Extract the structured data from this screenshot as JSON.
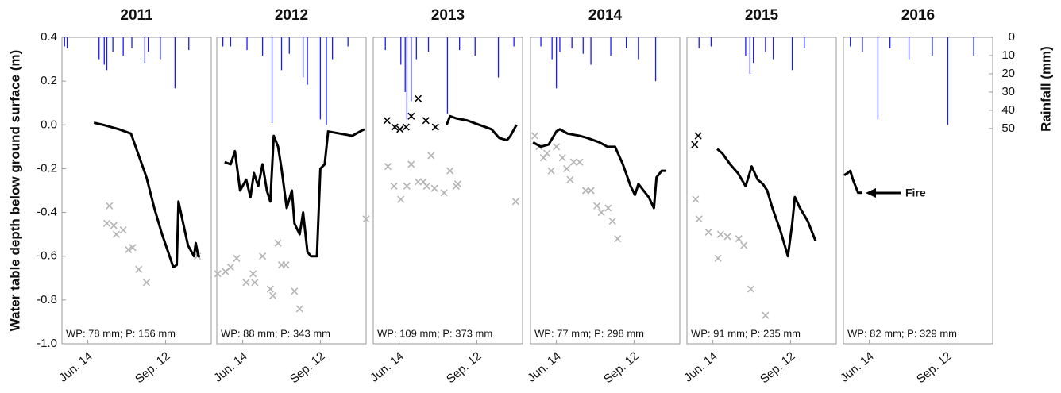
{
  "chart_data": [
    {
      "type": "line",
      "title": "2011",
      "note": "WP: 78 mm; P: 156 mm",
      "ylabel": "Water table depth below ground surface (m)",
      "xlim": [
        135,
        308
      ],
      "ylim": [
        -1.0,
        0.4
      ],
      "y2lim": [
        0,
        168
      ],
      "xticks": [
        {
          "value": 165,
          "label": "Jun. 14"
        },
        {
          "value": 255,
          "label": "Sep. 12"
        }
      ],
      "yticks": [
        0.4,
        0.2,
        {
          "value": 0,
          "label": "0.0"
        },
        -0.2,
        -0.4,
        -0.6,
        -0.8,
        {
          "value": -1.0,
          "label": "-1.0"
        }
      ],
      "series": [
        {
          "type": "bar",
          "axis": "y2",
          "color": "#1a1aff",
          "x": [
            138,
            141,
            178,
            184,
            187,
            194,
            206,
            216,
            231,
            235,
            249,
            266,
            282
          ],
          "values": [
            5,
            6,
            12,
            15,
            18,
            8,
            10,
            6,
            14,
            8,
            12,
            28,
            7
          ]
        },
        {
          "type": "scatter",
          "color": "#b4b4b4",
          "x": [
            190,
            187,
            195,
            198,
            206,
            212,
            217,
            224,
            233,
            292
          ],
          "values": [
            -0.37,
            -0.45,
            -0.46,
            -0.5,
            -0.48,
            -0.57,
            -0.56,
            -0.66,
            -0.72,
            -0.6
          ]
        },
        {
          "type": "line",
          "color": "#000000",
          "x": [
            172,
            183,
            201,
            215,
            224,
            233,
            242,
            251,
            258,
            264,
            268,
            270,
            281,
            288,
            290,
            293,
            295
          ],
          "values": [
            0.01,
            0.0,
            -0.02,
            -0.04,
            -0.14,
            -0.24,
            -0.38,
            -0.5,
            -0.58,
            -0.65,
            -0.64,
            -0.35,
            -0.55,
            -0.6,
            -0.54,
            -0.6,
            -0.6
          ]
        }
      ]
    },
    {
      "type": "line",
      "title": "2012",
      "note": "WP: 88 mm; P: 343 mm",
      "xlim": [
        135,
        308
      ],
      "ylim": [
        -1.0,
        0.4
      ],
      "y2lim": [
        0,
        168
      ],
      "xticks": [
        {
          "value": 165,
          "label": "Jun. 14"
        },
        {
          "value": 255,
          "label": "Sep. 12"
        }
      ],
      "series": [
        {
          "type": "bar",
          "axis": "y2",
          "color": "#1a1aff",
          "x": [
            142,
            151,
            170,
            188,
            199,
            210,
            219,
            235,
            240,
            255,
            262,
            269,
            287
          ],
          "values": [
            5,
            5,
            7,
            10,
            47,
            18,
            9,
            22,
            26,
            45,
            48,
            12,
            5
          ]
        },
        {
          "type": "scatter",
          "color": "#b4b4b4",
          "x": [
            136,
            145,
            151,
            158,
            169,
            177,
            179,
            188,
            197,
            200,
            206,
            210,
            215,
            225,
            231,
            308
          ],
          "values": [
            -0.68,
            -0.67,
            -0.65,
            -0.61,
            -0.72,
            -0.68,
            -0.72,
            -0.6,
            -0.75,
            -0.78,
            -0.54,
            -0.64,
            -0.64,
            -0.76,
            -0.84,
            -0.43
          ]
        },
        {
          "type": "line",
          "color": "#000000",
          "x": [
            144,
            151,
            156,
            162,
            169,
            174,
            178,
            183,
            188,
            193,
            197,
            201,
            206,
            210,
            216,
            222,
            225,
            231,
            235,
            240,
            244,
            251,
            255,
            260,
            264,
            278,
            292,
            301,
            306
          ],
          "values": [
            -0.17,
            -0.18,
            -0.12,
            -0.3,
            -0.25,
            -0.33,
            -0.22,
            -0.28,
            -0.18,
            -0.3,
            -0.35,
            -0.05,
            -0.1,
            -0.2,
            -0.38,
            -0.3,
            -0.45,
            -0.5,
            -0.4,
            -0.58,
            -0.6,
            -0.6,
            -0.2,
            -0.18,
            -0.03,
            -0.04,
            -0.05,
            -0.03,
            -0.02
          ]
        }
      ]
    },
    {
      "type": "line",
      "title": "2013",
      "note": "WP: 109 mm; P: 373 mm",
      "xlim": [
        135,
        308
      ],
      "ylim": [
        -1.0,
        0.4
      ],
      "y2lim": [
        0,
        168
      ],
      "xticks": [
        {
          "value": 165,
          "label": "Jun. 14"
        },
        {
          "value": 255,
          "label": "Sep. 12"
        }
      ],
      "series": [
        {
          "type": "bar",
          "axis": "y2",
          "color": "#1a1aff",
          "x": [
            149,
            167,
            172,
            174,
            179,
            185,
            199,
            221,
            235,
            253,
            280,
            298
          ],
          "values": [
            7,
            15,
            30,
            45,
            35,
            12,
            8,
            42,
            7,
            10,
            22,
            5
          ]
        },
        {
          "type": "scatter",
          "color": "#b4b4b4",
          "x": [
            152,
            159,
            167,
            174,
            179,
            187,
            193,
            197,
            202,
            206,
            217,
            224,
            231,
            233,
            300
          ],
          "values": [
            -0.19,
            -0.28,
            -0.34,
            -0.28,
            -0.18,
            -0.26,
            -0.26,
            -0.28,
            -0.14,
            -0.29,
            -0.31,
            -0.21,
            -0.28,
            -0.27,
            -0.35
          ]
        },
        {
          "type": "scatter",
          "color": "#000000",
          "x": [
            151,
            160,
            166,
            173,
            179,
            187,
            196,
            207
          ],
          "values": [
            0.02,
            -0.01,
            -0.02,
            -0.01,
            0.04,
            0.12,
            0.02,
            -0.01
          ]
        },
        {
          "type": "line",
          "color": "#000000",
          "x": [
            220,
            224,
            231,
            244,
            258,
            272,
            281,
            290,
            294,
            301
          ],
          "values": [
            0.0,
            0.04,
            0.03,
            0.02,
            0.0,
            -0.02,
            -0.06,
            -0.07,
            -0.05,
            0.0
          ]
        }
      ]
    },
    {
      "type": "line",
      "title": "2014",
      "note": "WP: 77 mm; P: 298 mm",
      "xlim": [
        135,
        308
      ],
      "ylim": [
        -1.0,
        0.4
      ],
      "y2lim": [
        0,
        168
      ],
      "xticks": [
        {
          "value": 165,
          "label": "Jun. 14"
        },
        {
          "value": 255,
          "label": "Sep. 12"
        }
      ],
      "series": [
        {
          "type": "bar",
          "axis": "y2",
          "color": "#1a1aff",
          "x": [
            147,
            160,
            165,
            169,
            183,
            196,
            205,
            228,
            246,
            260,
            280
          ],
          "values": [
            5,
            12,
            28,
            8,
            6,
            9,
            15,
            10,
            6,
            12,
            24
          ]
        },
        {
          "type": "scatter",
          "color": "#b4b4b4",
          "x": [
            140,
            145,
            150,
            154,
            159,
            165,
            172,
            177,
            181,
            185,
            192,
            199,
            205,
            212,
            217,
            225,
            230,
            236
          ],
          "values": [
            -0.05,
            -0.1,
            -0.15,
            -0.13,
            -0.21,
            -0.1,
            -0.15,
            -0.2,
            -0.25,
            -0.17,
            -0.17,
            -0.3,
            -0.3,
            -0.37,
            -0.4,
            -0.38,
            -0.44,
            -0.52
          ]
        },
        {
          "type": "line",
          "color": "#000000",
          "x": [
            138,
            147,
            156,
            165,
            169,
            178,
            192,
            201,
            215,
            224,
            233,
            242,
            251,
            256,
            260,
            266,
            272,
            278,
            281,
            287,
            292
          ],
          "values": [
            -0.08,
            -0.1,
            -0.09,
            -0.03,
            -0.02,
            -0.04,
            -0.05,
            -0.06,
            -0.08,
            -0.1,
            -0.1,
            -0.18,
            -0.28,
            -0.32,
            -0.27,
            -0.3,
            -0.33,
            -0.38,
            -0.24,
            -0.21,
            -0.21
          ]
        }
      ]
    },
    {
      "type": "line",
      "title": "2015",
      "note": "WP: 91 mm; P: 235 mm",
      "xlim": [
        135,
        308
      ],
      "ylim": [
        -1.0,
        0.4
      ],
      "y2lim": [
        0,
        168
      ],
      "xticks": [
        {
          "value": 165,
          "label": "Jun. 14"
        },
        {
          "value": 255,
          "label": "Sep. 12"
        }
      ],
      "series": [
        {
          "type": "bar",
          "axis": "y2",
          "color": "#1a1aff",
          "x": [
            149,
            163,
            203,
            208,
            212,
            226,
            235,
            257,
            271
          ],
          "values": [
            6,
            5,
            10,
            20,
            14,
            8,
            12,
            18,
            6
          ]
        },
        {
          "type": "scatter",
          "color": "#b4b4b4",
          "x": [
            145,
            149,
            160,
            171,
            174,
            182,
            195,
            201,
            209,
            226
          ],
          "values": [
            -0.34,
            -0.43,
            -0.49,
            -0.61,
            -0.5,
            -0.51,
            -0.52,
            -0.55,
            -0.75,
            -0.87
          ]
        },
        {
          "type": "scatter",
          "color": "#000000",
          "x": [
            144,
            148
          ],
          "values": [
            -0.09,
            -0.05
          ]
        },
        {
          "type": "line",
          "color": "#000000",
          "x": [
            170,
            176,
            185,
            194,
            203,
            210,
            217,
            223,
            228,
            234,
            243,
            252,
            257,
            260,
            266,
            275,
            284
          ],
          "values": [
            -0.11,
            -0.13,
            -0.18,
            -0.22,
            -0.28,
            -0.19,
            -0.25,
            -0.27,
            -0.3,
            -0.38,
            -0.48,
            -0.6,
            -0.45,
            -0.33,
            -0.38,
            -0.44,
            -0.53
          ]
        }
      ]
    },
    {
      "type": "line",
      "title": "2016",
      "note": "WP: 82 mm; P: 329 mm",
      "arrow_label": "Fire",
      "y2label": "Rainfall (mm)",
      "xlim": [
        135,
        308
      ],
      "ylim": [
        -1.0,
        0.4
      ],
      "y2lim": [
        0,
        168
      ],
      "xticks": [
        {
          "value": 165,
          "label": "Jun. 14"
        },
        {
          "value": 255,
          "label": "Sep. 12"
        }
      ],
      "y2ticks": [
        0,
        10,
        20,
        30,
        40,
        50
      ],
      "series": [
        {
          "type": "bar",
          "axis": "y2",
          "color": "#1a1aff",
          "x": [
            143,
            157,
            175,
            189,
            211,
            238,
            256,
            286
          ],
          "values": [
            5,
            8,
            45,
            6,
            12,
            10,
            48,
            10
          ]
        },
        {
          "type": "line",
          "color": "#000000",
          "x": [
            136,
            140,
            143,
            146,
            149,
            152,
            157
          ],
          "values": [
            -0.23,
            -0.22,
            -0.21,
            -0.25,
            -0.28,
            -0.31,
            -0.31
          ]
        }
      ]
    }
  ]
}
